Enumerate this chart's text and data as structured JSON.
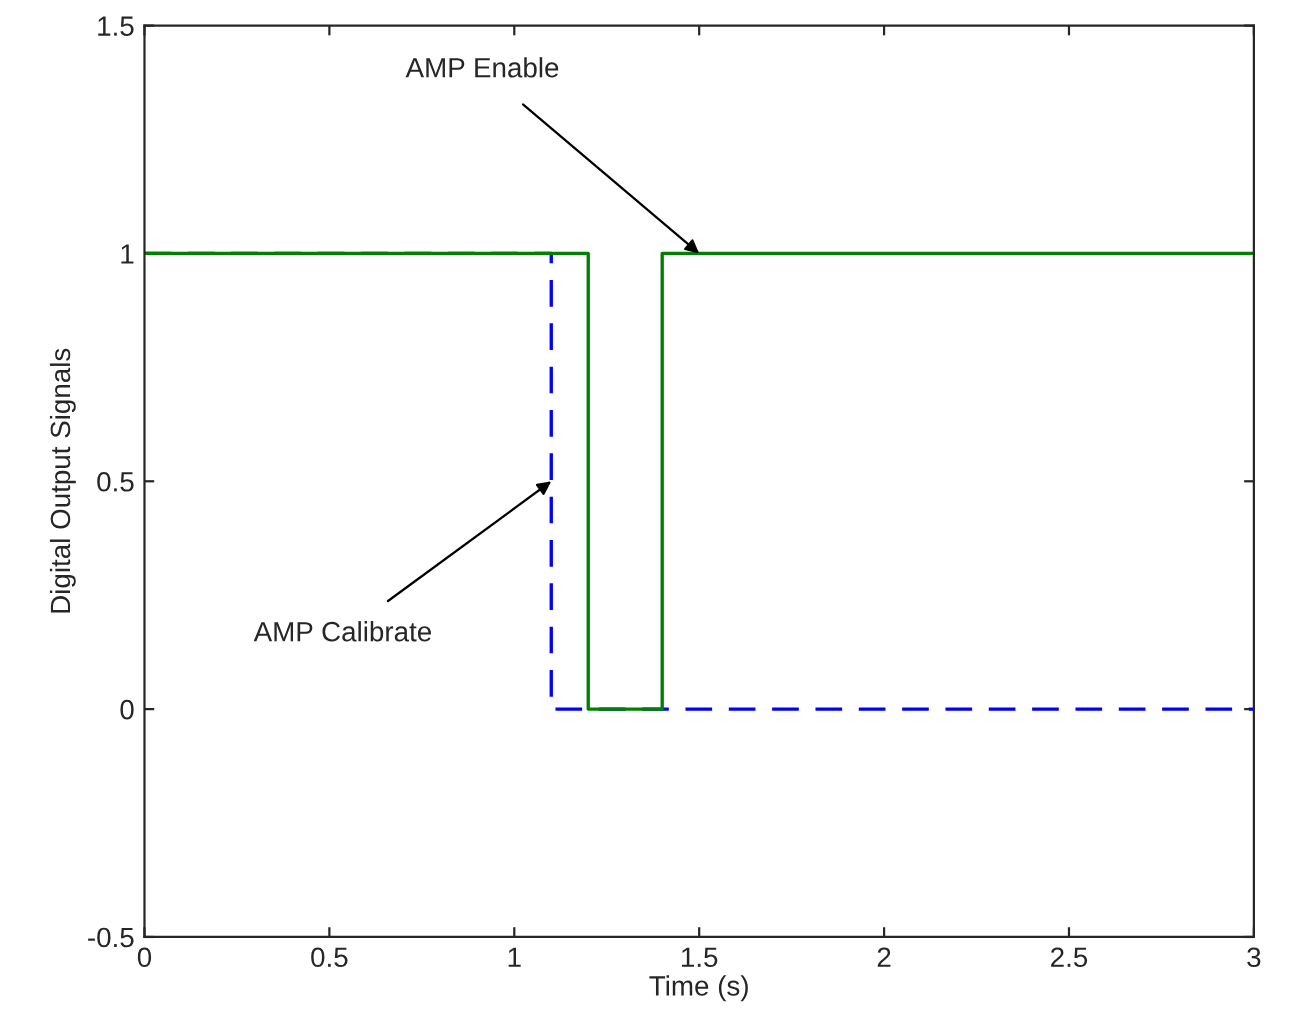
{
  "chart_data": {
    "type": "step",
    "xlabel": "Time (s)",
    "ylabel": "Digital Output Signals",
    "series": [
      {
        "color": "#0000ff",
        "x": [
          0,
          1.1,
          3
        ],
        "values": [
          1,
          0,
          0
        ],
        "line_style": "dashed"
      },
      {
        "color": "#008000",
        "x": [
          0,
          1.2,
          1.4,
          3
        ],
        "values": [
          1,
          0,
          1,
          1
        ],
        "line_style": "solid"
      }
    ],
    "annotations": [
      {
        "text": "AMP Enable",
        "x": 1.5,
        "y": 1
      },
      {
        "text": "AMP Calibrate",
        "x": 1.1,
        "y": 0.5
      }
    ],
    "xlim": [
      0,
      3
    ],
    "xticks": [
      0,
      0.5,
      1,
      1.5,
      2,
      2.5,
      3
    ],
    "ylim": [
      -0.5,
      1.5
    ],
    "yticks": [
      -0.5,
      0,
      0.5,
      1,
      1.5
    ],
    "grid": false,
    "legend": false
  }
}
